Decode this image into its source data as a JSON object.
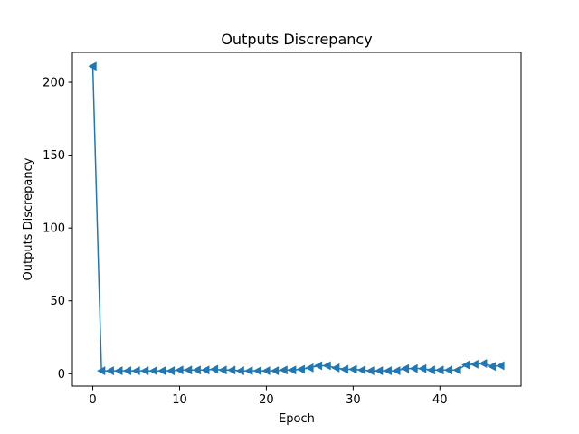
{
  "chart_data": {
    "type": "line",
    "title": "Outputs Discrepancy",
    "xlabel": "Epoch",
    "ylabel": "Outputs Discrepancy",
    "xlim": [
      -2.35,
      49.35
    ],
    "ylim": [
      -8.5,
      220.5
    ],
    "xticks": [
      "0",
      "10",
      "20",
      "30",
      "40"
    ],
    "yticks": [
      "0",
      "50",
      "100",
      "150",
      "200"
    ],
    "grid": false,
    "legend": "none",
    "series": [
      {
        "color": "#1f77b4",
        "marker": "triangle-left",
        "x": [
          0,
          1,
          2,
          3,
          4,
          5,
          6,
          7,
          8,
          9,
          10,
          11,
          12,
          13,
          14,
          15,
          16,
          17,
          18,
          19,
          20,
          21,
          22,
          23,
          24,
          25,
          26,
          27,
          28,
          29,
          30,
          31,
          32,
          33,
          34,
          35,
          36,
          37,
          38,
          39,
          40,
          41,
          42,
          43,
          44,
          45,
          46,
          47
        ],
        "values": [
          211,
          2,
          2,
          2,
          2,
          2,
          2,
          2,
          2,
          2,
          2.5,
          2.5,
          2.5,
          2.5,
          3,
          2.5,
          2.5,
          2,
          2,
          2,
          2,
          2,
          2.5,
          2.5,
          3,
          4,
          5.5,
          5.5,
          4,
          3,
          3,
          2.5,
          2,
          2,
          2,
          2,
          3.5,
          3.5,
          3.5,
          2.5,
          2.5,
          2.5,
          2.5,
          6,
          6.5,
          7,
          5,
          5.5
        ]
      }
    ]
  }
}
